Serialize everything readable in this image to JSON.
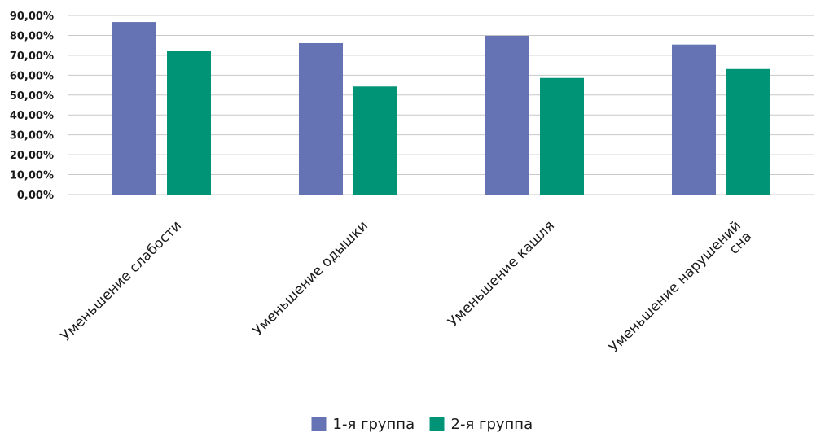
{
  "chart_data": {
    "type": "bar",
    "categories": [
      [
        "Уменьшение слабости"
      ],
      [
        "Уменьшение одышки"
      ],
      [
        "Уменьшение кашля"
      ],
      [
        "Уменьшение нарушений",
        "сна"
      ]
    ],
    "series": [
      {
        "name": "1-я группа",
        "color": "#6573b5",
        "values": [
          86.7,
          76.1,
          79.8,
          75.4
        ]
      },
      {
        "name": "2-я группа",
        "color": "#009477",
        "values": [
          72.0,
          54.3,
          58.6,
          63.1
        ]
      }
    ],
    "yticks": [
      "0,00%",
      "10,00%",
      "20,00%",
      "30,00%",
      "40,00%",
      "50,00%",
      "60,00%",
      "70,00%",
      "80,00%",
      "90,00%"
    ],
    "ylim": [
      0,
      90
    ],
    "grid": true,
    "legend_position": "bottom"
  }
}
